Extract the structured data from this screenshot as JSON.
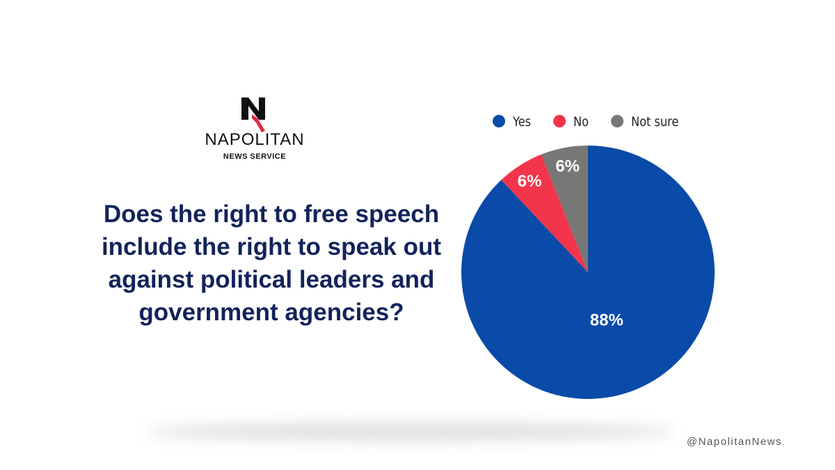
{
  "brand": {
    "name": "NAPOLITAN",
    "tagline": "NEWS SERVICE",
    "handle": "@NapolitanNews"
  },
  "chart_data": {
    "type": "pie",
    "title": "Does the right to free speech include the right to speak out against political leaders and government agencies?",
    "categories": [
      "Yes",
      "No",
      "Not sure"
    ],
    "values": [
      88,
      6,
      6
    ],
    "value_labels": [
      "88%",
      "6%",
      "6%"
    ],
    "colors": [
      "#0a4aa8",
      "#f2354b",
      "#777777"
    ],
    "legend": "top"
  }
}
